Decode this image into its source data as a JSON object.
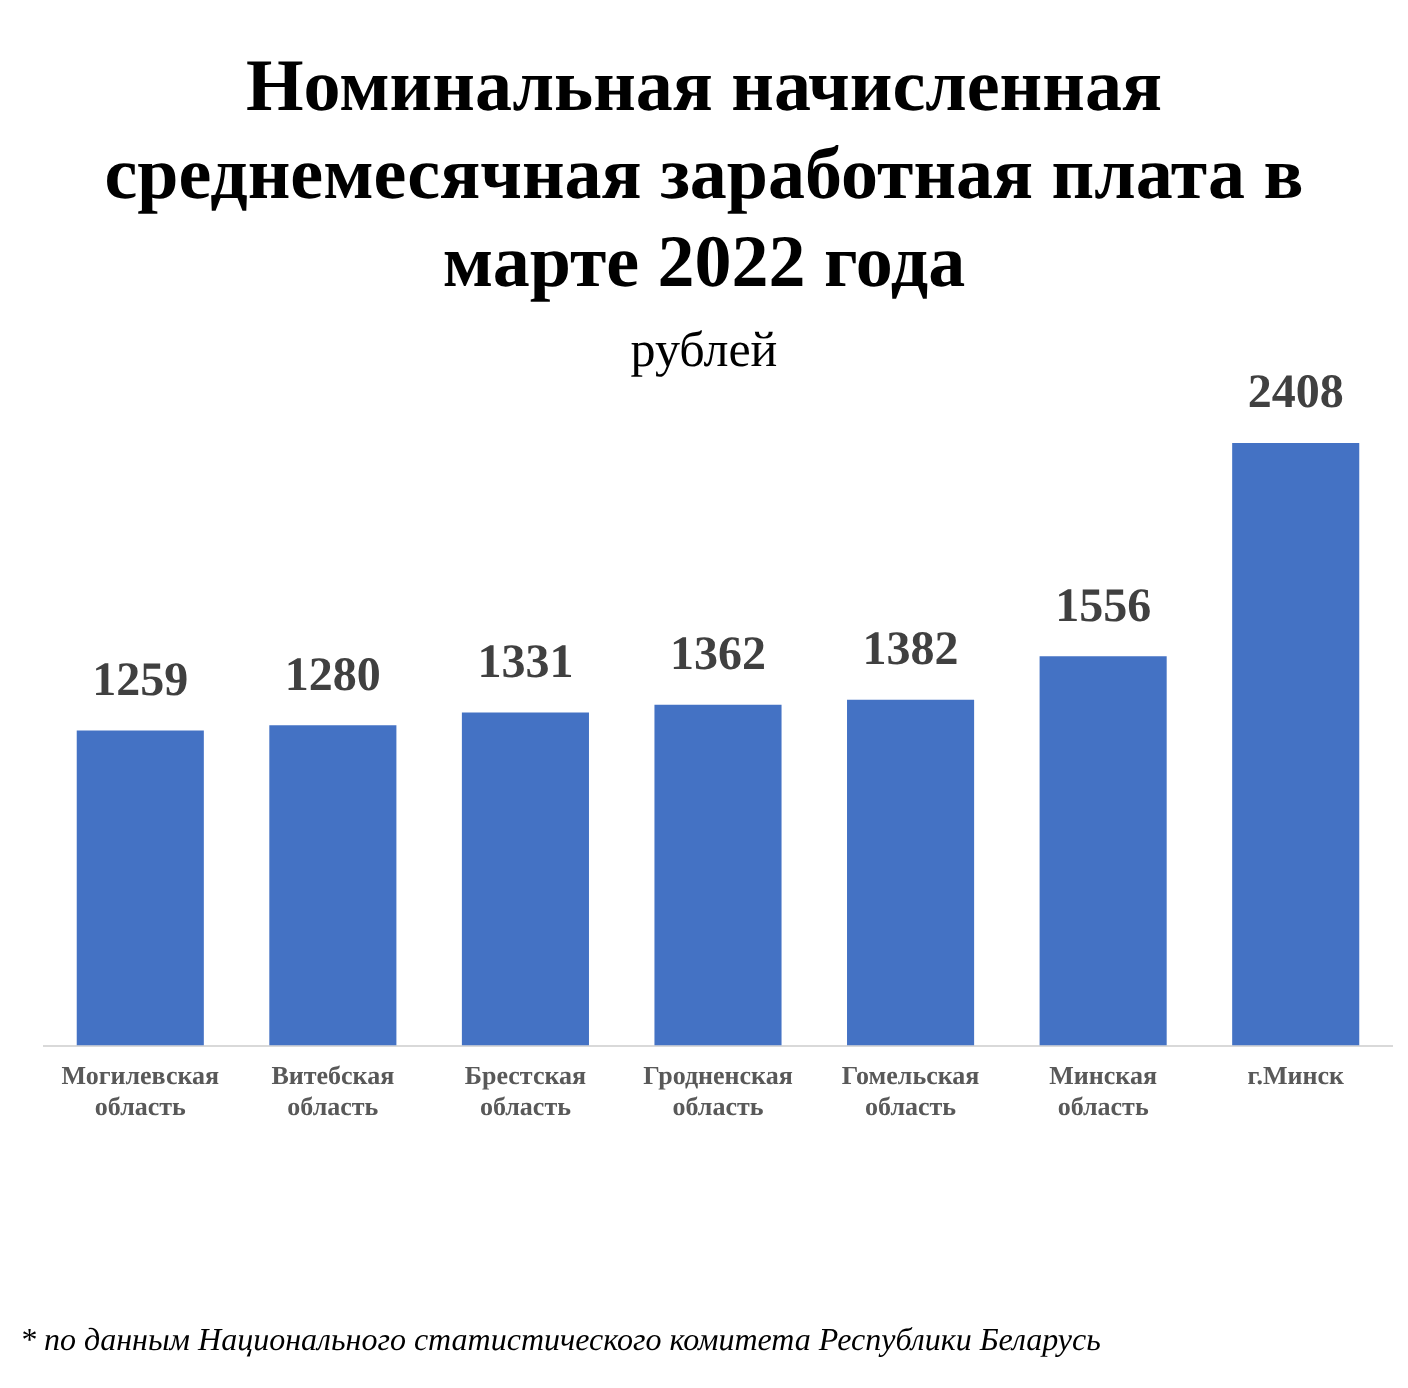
{
  "chart_data": {
    "type": "bar",
    "title": "Номинальная начисленная среднемесячная заработная плата в марте 2022 года",
    "subtitle": "рублей",
    "categories": [
      "Могилевская область",
      "Витебская область",
      "Брестская область",
      "Гродненская область",
      "Гомельская область",
      "Минская область",
      "г.Минск"
    ],
    "values": [
      1259,
      1280,
      1331,
      1362,
      1382,
      1556,
      2408
    ],
    "color": "#4472c4",
    "data_labels": true,
    "relative": false,
    "grid": false,
    "legend": false,
    "annotations": [
      "* по данным Национального статистического комитета Республики Беларусь"
    ]
  }
}
